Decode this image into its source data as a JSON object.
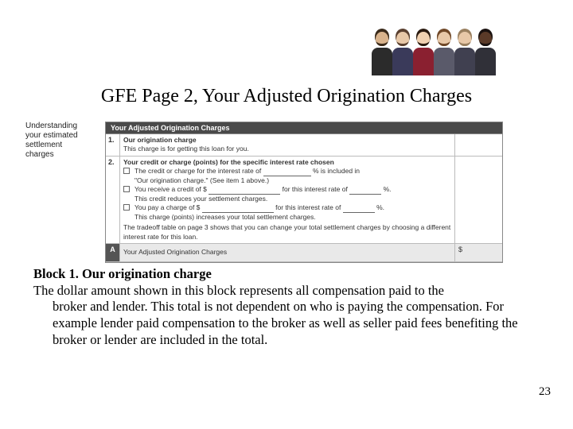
{
  "title": "GFE Page 2, Your Adjusted Origination Charges",
  "people": [
    {
      "head": "#d9b38c",
      "body": "#2b2b2b",
      "hair": "#3a2a1a"
    },
    {
      "head": "#e8c8a8",
      "body": "#3a3a5a",
      "hair": "#5a4030"
    },
    {
      "head": "#f0d0b0",
      "body": "#8a2030",
      "hair": "#2a1a10"
    },
    {
      "head": "#e8c8a8",
      "body": "#5a5a6a",
      "hair": "#704828"
    },
    {
      "head": "#e8c8a8",
      "body": "#404050",
      "hair": "#9a8060"
    },
    {
      "head": "#5a3a28",
      "body": "#303038",
      "hair": "#1a1210"
    }
  ],
  "form": {
    "left_label_l1": "Understanding",
    "left_label_l2": "your estimated",
    "left_label_l3": "settlement",
    "left_label_l4": "charges",
    "header": "Your Adjusted Origination Charges",
    "row1_num": "1.",
    "row1_title": "Our origination charge",
    "row1_desc": "This charge is for getting this loan for you.",
    "row2_num": "2.",
    "row2_title": "Your credit or charge (points) for the specific interest rate chosen",
    "row2_opt1a": "The credit or charge for the interest rate of",
    "row2_opt1b": "% is included in",
    "row2_opt1c": "\"Our origination charge.\" (See item 1 above.)",
    "row2_opt2a": "You receive a credit of $",
    "row2_opt2b": "for this interest rate of",
    "row2_opt2c": "%.",
    "row2_opt2d": "This credit reduces your settlement charges.",
    "row2_opt3a": "You pay a charge of $",
    "row2_opt3b": "for this interest rate of",
    "row2_opt3c": "%.",
    "row2_opt3d": "This charge (points) increases your total settlement charges.",
    "row2_tradeoff": "The tradeoff table on page 3 shows that you can change your total settlement charges by choosing a different interest rate for this loan.",
    "total_letter": "A",
    "total_label": "Your Adjusted Origination Charges",
    "total_dollar": "$"
  },
  "body": {
    "heading": "Block 1. Our origination charge",
    "line1": "The dollar amount shown in this block represents all compensation paid to the",
    "line2": "broker and lender. This total is not dependent on who is paying the compensation. For example lender paid compensation to the broker as well as seller paid fees benefiting the broker or lender are included in the total."
  },
  "page_number": "23"
}
